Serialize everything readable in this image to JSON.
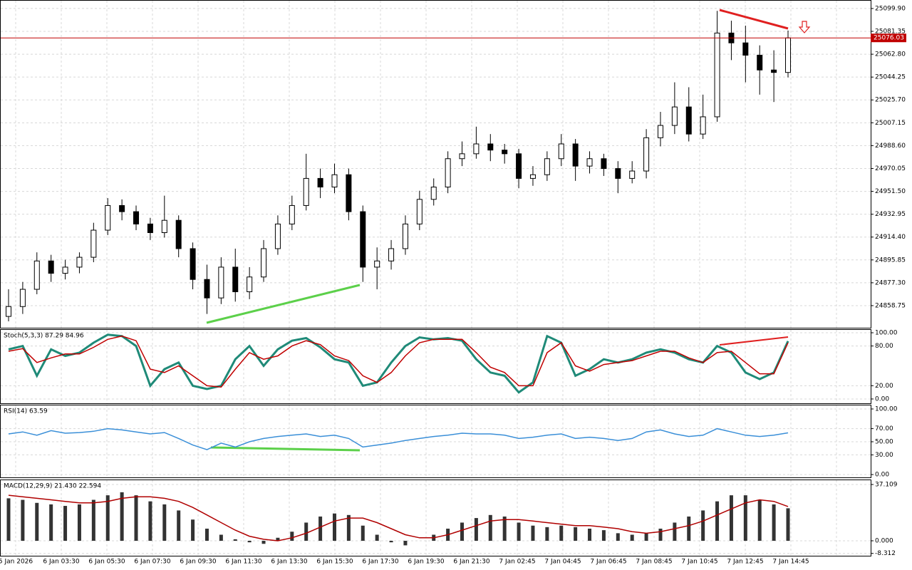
{
  "chart_data": [
    {
      "type": "candlestick",
      "last_price": 25076.03,
      "ylim": [
        24840.8,
        25106.8
      ],
      "yticks": [
        {
          "value": 25099.9,
          "label": "25099.90"
        },
        25081.35,
        {
          "value": 25062.8,
          "label": "25062.80"
        },
        25044.25,
        {
          "value": 25025.7,
          "label": "25025.70"
        },
        25007.15,
        {
          "value": 24988.6,
          "label": "24988.60"
        },
        24970.05,
        {
          "value": 24951.5,
          "label": "24951.50"
        },
        24932.95,
        {
          "value": 24914.4,
          "label": "24914.40"
        },
        24895.85,
        {
          "value": 24877.3,
          "label": "24877.30"
        },
        24858.75
      ],
      "candles": [
        [
          24850,
          24872,
          24846,
          24858
        ],
        [
          24858,
          24878,
          24852,
          24872
        ],
        [
          24872,
          24902,
          24868,
          24895
        ],
        [
          24895,
          24900,
          24878,
          24885
        ],
        [
          24885,
          24896,
          24880,
          24890
        ],
        [
          24890,
          24902,
          24885,
          24898
        ],
        [
          24898,
          24926,
          24894,
          24920
        ],
        [
          24920,
          24946,
          24916,
          24940
        ],
        [
          24940,
          24945,
          24928,
          24935
        ],
        [
          24935,
          24940,
          24920,
          24925
        ],
        [
          24925,
          24930,
          24912,
          24918
        ],
        [
          24918,
          24948,
          24914,
          24928
        ],
        [
          24928,
          24932,
          24898,
          24905
        ],
        [
          24905,
          24910,
          24872,
          24880
        ],
        [
          24880,
          24892,
          24852,
          24865
        ],
        [
          24865,
          24898,
          24860,
          24890
        ],
        [
          24890,
          24905,
          24862,
          24870
        ],
        [
          24870,
          24890,
          24864,
          24882
        ],
        [
          24882,
          24912,
          24878,
          24905
        ],
        [
          24905,
          24932,
          24900,
          24925
        ],
        [
          24925,
          24948,
          24920,
          24940
        ],
        [
          24940,
          24982,
          24936,
          24962
        ],
        [
          24962,
          24970,
          24946,
          24955
        ],
        [
          24955,
          24974,
          24950,
          24965
        ],
        [
          24965,
          24970,
          24928,
          24935
        ],
        [
          24935,
          24940,
          24878,
          24890
        ],
        [
          24890,
          24906,
          24872,
          24895
        ],
        [
          24895,
          24912,
          24888,
          24905
        ],
        [
          24905,
          24932,
          24900,
          24925
        ],
        [
          24925,
          24952,
          24920,
          24945
        ],
        [
          24945,
          24962,
          24940,
          24955
        ],
        [
          24955,
          24984,
          24950,
          24978
        ],
        [
          24978,
          24992,
          24972,
          24982
        ],
        [
          24982,
          25004,
          24978,
          24990
        ],
        [
          24990,
          24998,
          24976,
          24985
        ],
        [
          24985,
          24990,
          24974,
          24982
        ],
        [
          24982,
          24986,
          24954,
          24962
        ],
        [
          24962,
          24972,
          24956,
          24965
        ],
        [
          24965,
          24984,
          24960,
          24978
        ],
        [
          24978,
          24998,
          24972,
          24990
        ],
        [
          24990,
          24994,
          24960,
          24972
        ],
        [
          24972,
          24984,
          24966,
          24978
        ],
        [
          24978,
          24982,
          24964,
          24970
        ],
        [
          24970,
          24976,
          24950,
          24962
        ],
        [
          24962,
          24976,
          24958,
          24968
        ],
        [
          24968,
          25002,
          24962,
          24995
        ],
        [
          24995,
          25016,
          24988,
          25005
        ],
        [
          25005,
          25040,
          24998,
          25020
        ],
        [
          25020,
          25036,
          24992,
          24998
        ],
        [
          24998,
          25030,
          24994,
          25012
        ],
        [
          25012,
          25098,
          25008,
          25080
        ],
        [
          25080,
          25090,
          25058,
          25072
        ],
        [
          25072,
          25086,
          25040,
          25062
        ],
        [
          25062,
          25070,
          25030,
          25050
        ],
        [
          25050,
          25066,
          25024,
          25048
        ],
        [
          25048,
          25082,
          25044,
          25076.03
        ]
      ]
    },
    {
      "type": "line",
      "header": "Stoch(5,3,3) 87.29 84.96",
      "ylim": [
        -6.5,
        105.4
      ],
      "yticks": [
        {
          "value": 100,
          "label": "100.00"
        },
        {
          "value": 80,
          "label": "80.00"
        },
        {
          "value": 20,
          "label": "20.00"
        },
        {
          "value": 0,
          "label": "0.00"
        }
      ],
      "series": [
        {
          "color": "#1f8a78",
          "width": 3,
          "values": [
            75,
            80,
            35,
            75,
            65,
            70,
            85,
            97,
            95,
            80,
            20,
            45,
            55,
            20,
            15,
            20,
            60,
            80,
            50,
            75,
            88,
            92,
            78,
            60,
            55,
            20,
            25,
            55,
            80,
            93,
            90,
            92,
            88,
            60,
            40,
            35,
            10,
            25,
            95,
            85,
            35,
            45,
            60,
            55,
            60,
            70,
            75,
            70,
            60,
            55,
            80,
            70,
            40,
            30,
            40,
            87.29
          ]
        },
        {
          "color": "#c00000",
          "width": 1.5,
          "values": [
            72,
            76,
            55,
            62,
            68,
            68,
            78,
            90,
            95,
            88,
            45,
            40,
            50,
            35,
            20,
            18,
            45,
            70,
            60,
            65,
            80,
            88,
            82,
            65,
            58,
            35,
            25,
            40,
            65,
            85,
            90,
            90,
            90,
            70,
            48,
            40,
            20,
            20,
            70,
            85,
            50,
            42,
            52,
            55,
            58,
            65,
            72,
            72,
            62,
            55,
            70,
            72,
            55,
            38,
            38,
            84.96
          ]
        }
      ]
    },
    {
      "type": "line",
      "header": "RSI(14) 63.59",
      "ylim": [
        -4.3,
        106.5
      ],
      "yticks": [
        {
          "value": 100,
          "label": "100.00"
        },
        {
          "value": 70,
          "label": "70.00"
        },
        {
          "value": 50,
          "label": "50.00"
        },
        {
          "value": 30,
          "label": "30.00"
        },
        {
          "value": 0,
          "label": "0.00"
        }
      ],
      "series": [
        {
          "color": "#3a8fd8",
          "width": 1.5,
          "values": [
            62,
            65,
            60,
            67,
            63,
            64,
            66,
            70,
            68,
            65,
            62,
            64,
            55,
            45,
            38,
            48,
            42,
            50,
            55,
            58,
            60,
            62,
            58,
            60,
            55,
            42,
            45,
            48,
            52,
            55,
            58,
            60,
            63,
            62,
            62,
            60,
            55,
            57,
            60,
            62,
            55,
            57,
            55,
            52,
            55,
            65,
            68,
            62,
            58,
            60,
            70,
            65,
            60,
            58,
            60,
            63.59
          ]
        }
      ]
    },
    {
      "type": "macd",
      "header": "MACD(12,29,9) 21.430 22.594",
      "ylim": [
        -9.86,
        40.4
      ],
      "yticks": [
        37.109,
        {
          "value": 0,
          "label": "0.000"
        },
        -8.312
      ],
      "xlabels": [
        "5 Jan 2026",
        "6 Jan 03:30",
        "6 Jan 05:30",
        "6 Jan 07:30",
        "6 Jan 09:30",
        "6 Jan 11:30",
        "6 Jan 13:30",
        "6 Jan 15:30",
        "6 Jan 17:30",
        "6 Jan 19:30",
        "6 Jan 21:30",
        "7 Jan 02:45",
        "7 Jan 04:45",
        "7 Jan 06:45",
        "7 Jan 08:45",
        "7 Jan 10:45",
        "7 Jan 12:45",
        "7 Jan 14:45"
      ],
      "series": [
        {
          "kind": "bar",
          "color": "#333333",
          "values": [
            28,
            27,
            25,
            24,
            23,
            24,
            27,
            30,
            32,
            30,
            26,
            24,
            20,
            14,
            8,
            4,
            1,
            -1,
            -2,
            2,
            6,
            12,
            16,
            18,
            17,
            10,
            4,
            -1,
            -3,
            0,
            4,
            8,
            12,
            15,
            17,
            16,
            12,
            10,
            9,
            10,
            9,
            8,
            7,
            5,
            4,
            5,
            8,
            12,
            16,
            20,
            26,
            30,
            30,
            27,
            24,
            21.43
          ]
        },
        {
          "kind": "line",
          "color": "#b00000",
          "values": [
            30,
            29,
            28,
            27,
            26,
            25,
            25,
            26,
            28,
            29,
            29,
            28,
            26,
            22,
            17,
            12,
            7,
            3,
            1,
            0,
            2,
            5,
            9,
            13,
            15,
            15,
            12,
            8,
            4,
            2,
            2,
            4,
            7,
            10,
            13,
            14,
            14,
            13,
            12,
            11,
            10,
            10,
            9,
            8,
            6,
            5,
            6,
            8,
            10,
            13,
            17,
            21,
            25,
            27,
            26,
            22.594
          ]
        }
      ]
    }
  ]
}
